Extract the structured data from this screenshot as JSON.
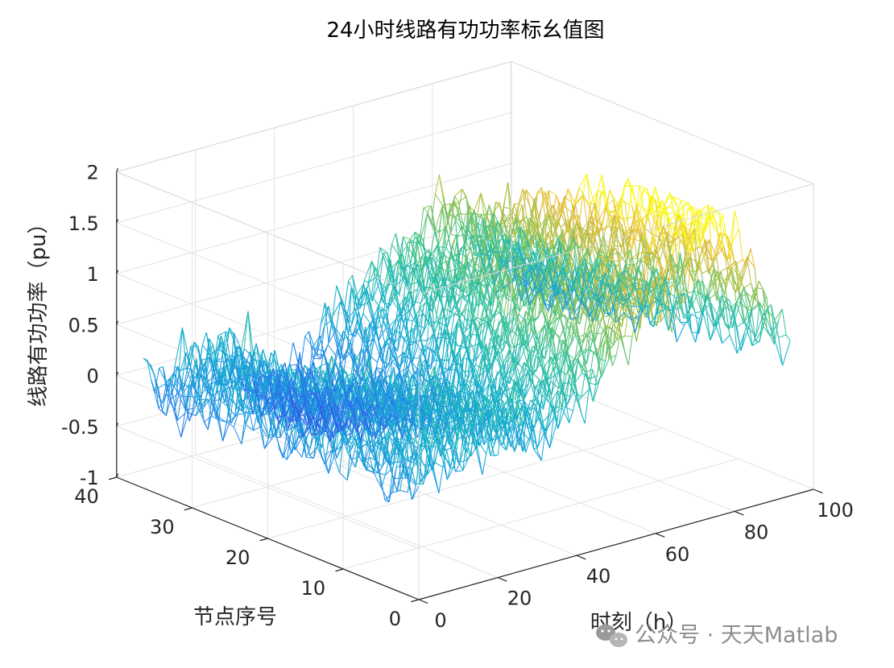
{
  "chart_data": {
    "type": "surface-mesh",
    "title": "24小时线路有功功率标幺值图",
    "xlabel": "时刻（h）",
    "ylabel": "节点序号",
    "zlabel": "线路有功功率（pu）",
    "xlim": [
      0,
      100
    ],
    "ylim": [
      0,
      40
    ],
    "zlim": [
      -1,
      2
    ],
    "xticks": [
      "0",
      "20",
      "40",
      "60",
      "80",
      "100"
    ],
    "yticks": [
      "0",
      "10",
      "20",
      "30",
      "40"
    ],
    "zticks": [
      "-1",
      "-0.5",
      "0",
      "0.5",
      "1",
      "1.5",
      "2"
    ],
    "grid": true,
    "colormap": "parula",
    "x_range_data": [
      1,
      96
    ],
    "y_range_data": [
      1,
      37
    ],
    "values_approx": [
      [
        0.0,
        -0.1,
        0.1,
        0.0,
        0.2,
        -0.2,
        -0.3,
        -0.4,
        -0.3,
        0.0,
        0.1,
        0.3,
        0.4,
        0.5,
        0.6,
        0.8,
        1.0,
        0.6,
        0.4,
        0.2,
        0.1
      ],
      [
        -0.1,
        0.0,
        0.1,
        0.2,
        0.1,
        -0.2,
        -0.4,
        -0.5,
        -0.4,
        -0.1,
        0.1,
        0.2,
        0.5,
        0.6,
        0.5,
        0.7,
        0.9,
        0.7,
        0.5,
        0.2,
        0.0
      ],
      [
        0.0,
        0.1,
        0.2,
        0.1,
        0.0,
        -0.1,
        -0.3,
        -0.4,
        -0.3,
        0.0,
        0.2,
        0.4,
        0.6,
        0.7,
        0.6,
        0.9,
        1.2,
        0.8,
        0.5,
        0.3,
        0.1
      ],
      [
        0.1,
        0.0,
        0.1,
        0.2,
        0.3,
        0.1,
        0.0,
        -0.2,
        -0.1,
        0.1,
        0.3,
        0.5,
        0.7,
        0.9,
        0.7,
        1.1,
        1.4,
        1.0,
        0.6,
        0.4,
        0.2
      ],
      [
        0.0,
        0.1,
        0.2,
        0.3,
        0.2,
        0.2,
        0.1,
        0.0,
        0.1,
        0.3,
        0.5,
        0.6,
        0.8,
        1.0,
        0.8,
        1.2,
        1.6,
        1.2,
        0.8,
        0.5,
        0.3
      ],
      [
        0.1,
        0.2,
        0.1,
        0.2,
        0.3,
        0.3,
        0.2,
        0.2,
        0.3,
        0.4,
        0.6,
        0.7,
        0.9,
        1.1,
        0.9,
        1.3,
        1.8,
        1.4,
        1.0,
        0.6,
        0.3
      ],
      [
        0.0,
        0.1,
        0.2,
        0.3,
        0.4,
        0.3,
        0.3,
        0.2,
        0.3,
        0.5,
        0.6,
        0.8,
        1.0,
        1.2,
        1.0,
        1.5,
        1.9,
        1.5,
        1.1,
        0.7,
        0.4
      ],
      [
        0.1,
        0.2,
        0.3,
        0.2,
        0.3,
        0.4,
        0.3,
        0.2,
        0.4,
        0.5,
        0.7,
        0.9,
        1.1,
        1.3,
        1.1,
        1.6,
        2.0,
        1.6,
        1.2,
        0.8,
        0.5
      ]
    ]
  },
  "watermark": {
    "text": "公众号 · 天天Matlab"
  }
}
